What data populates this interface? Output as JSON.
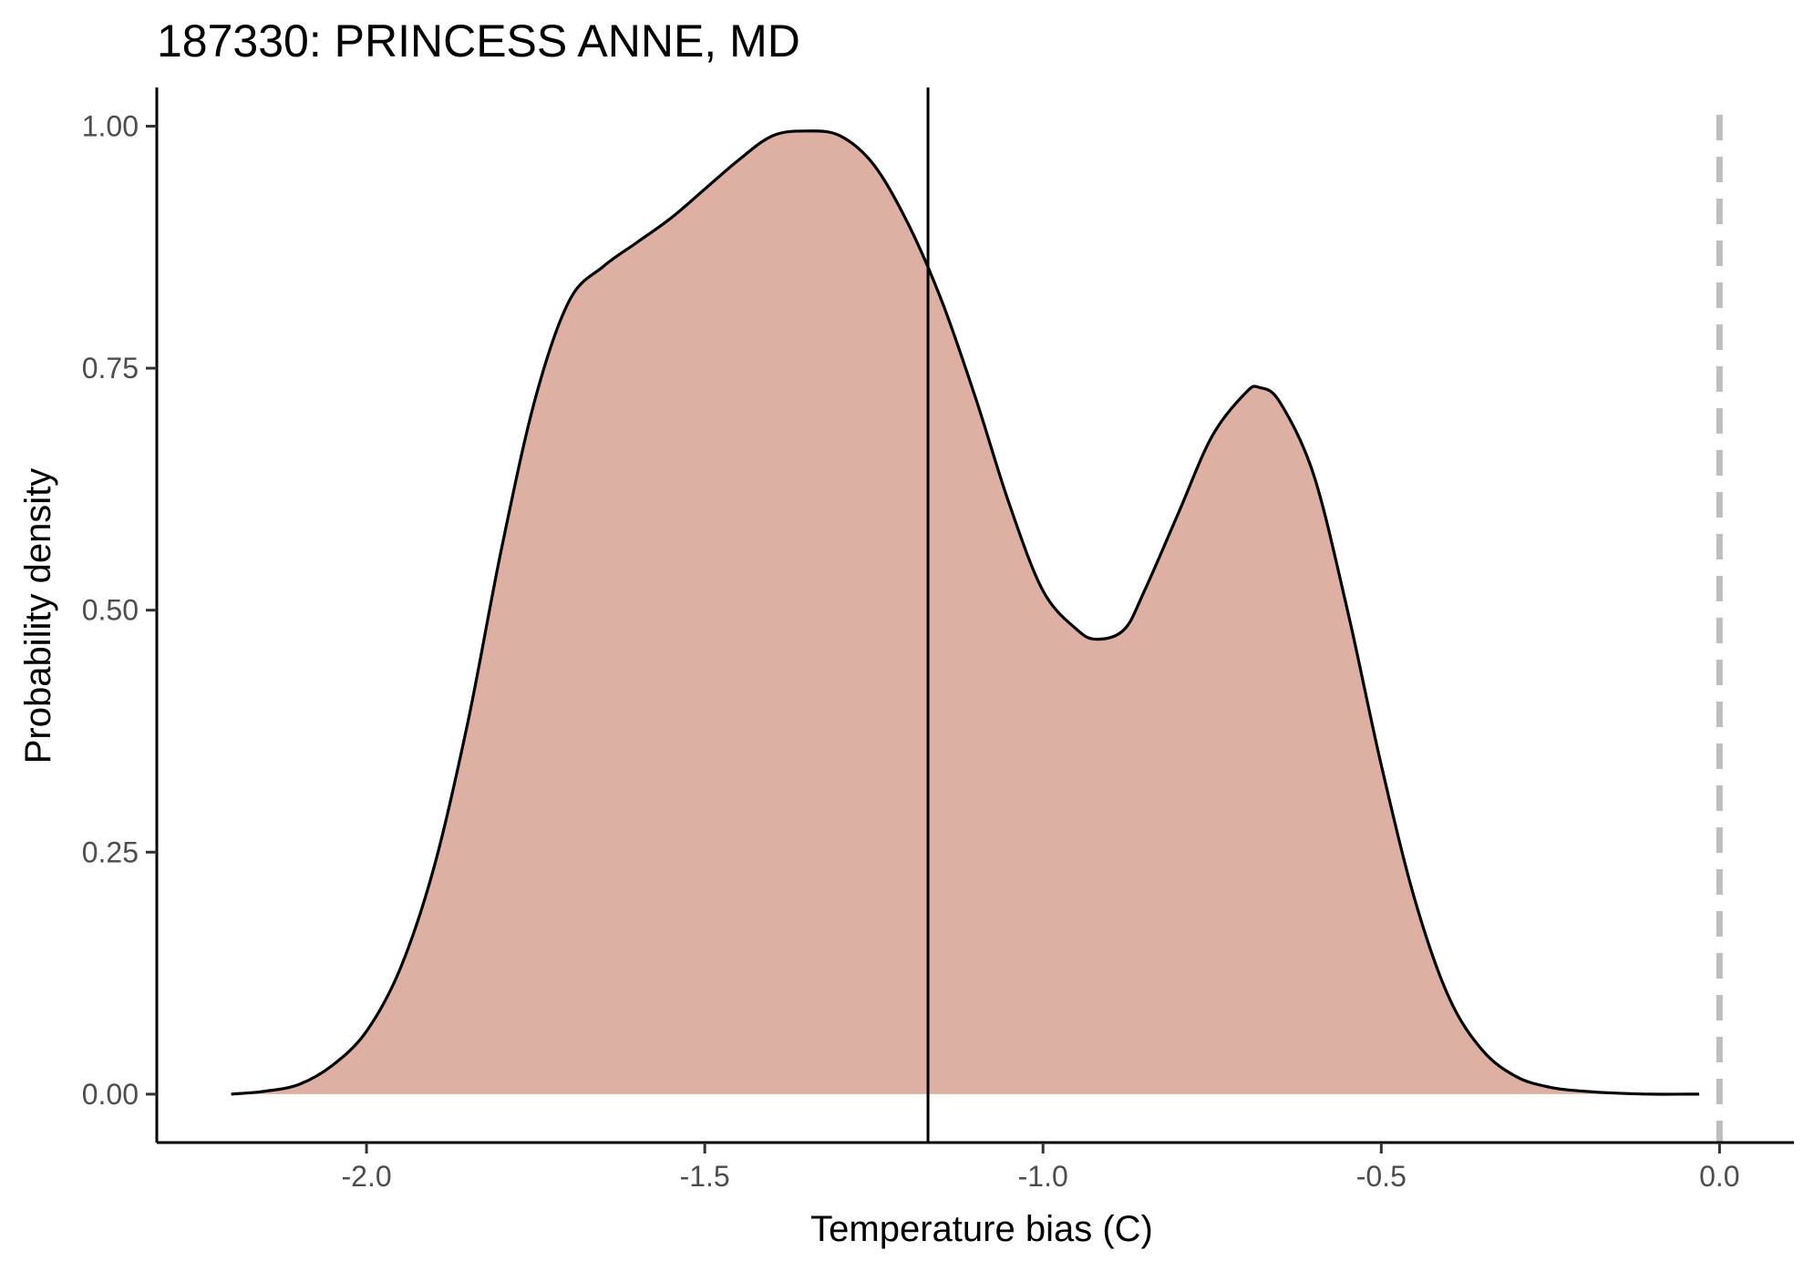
{
  "chart_data": {
    "type": "area",
    "title": "187330: PRINCESS ANNE, MD",
    "xlabel": "Temperature bias (C)",
    "ylabel": "Probability density",
    "xlim": [
      -2.31,
      0.11
    ],
    "ylim": [
      -0.05,
      1.04
    ],
    "x_ticks": [
      -2.0,
      -1.5,
      -1.0,
      -0.5,
      0.0
    ],
    "x_tick_labels": [
      "-2.0",
      "-1.5",
      "-1.0",
      "-0.5",
      "0.0"
    ],
    "y_ticks": [
      0.0,
      0.25,
      0.5,
      0.75,
      1.0
    ],
    "y_tick_labels": [
      "0.00",
      "0.25",
      "0.50",
      "0.75",
      "1.00"
    ],
    "grid": false,
    "legend": "none",
    "fill_color": "#deb0a3",
    "line_color": "#000000",
    "reference_lines": [
      {
        "x": -1.17,
        "style": "solid",
        "color": "#000000"
      },
      {
        "x": 0.0,
        "style": "dashed",
        "color": "#bebebe"
      }
    ],
    "series": [
      {
        "x": [
          -2.2,
          -2.15,
          -2.1,
          -2.05,
          -2.0,
          -1.95,
          -1.9,
          -1.85,
          -1.8,
          -1.75,
          -1.7,
          -1.65,
          -1.6,
          -1.55,
          -1.5,
          -1.45,
          -1.4,
          -1.35,
          -1.3,
          -1.25,
          -1.2,
          -1.15,
          -1.1,
          -1.05,
          -1.0,
          -0.95,
          -0.92,
          -0.88,
          -0.85,
          -0.8,
          -0.75,
          -0.7,
          -0.68,
          -0.65,
          -0.6,
          -0.55,
          -0.5,
          -0.45,
          -0.4,
          -0.35,
          -0.3,
          -0.25,
          -0.2,
          -0.15,
          -0.1,
          -0.05,
          -0.03
        ],
        "y": [
          0.0,
          0.003,
          0.01,
          0.03,
          0.065,
          0.13,
          0.235,
          0.385,
          0.565,
          0.72,
          0.82,
          0.855,
          0.88,
          0.905,
          0.935,
          0.965,
          0.99,
          0.995,
          0.99,
          0.96,
          0.9,
          0.82,
          0.72,
          0.61,
          0.52,
          0.48,
          0.47,
          0.48,
          0.52,
          0.6,
          0.68,
          0.725,
          0.73,
          0.715,
          0.64,
          0.5,
          0.34,
          0.2,
          0.1,
          0.045,
          0.018,
          0.007,
          0.003,
          0.001,
          0.0,
          0.0,
          0.0
        ]
      }
    ]
  }
}
